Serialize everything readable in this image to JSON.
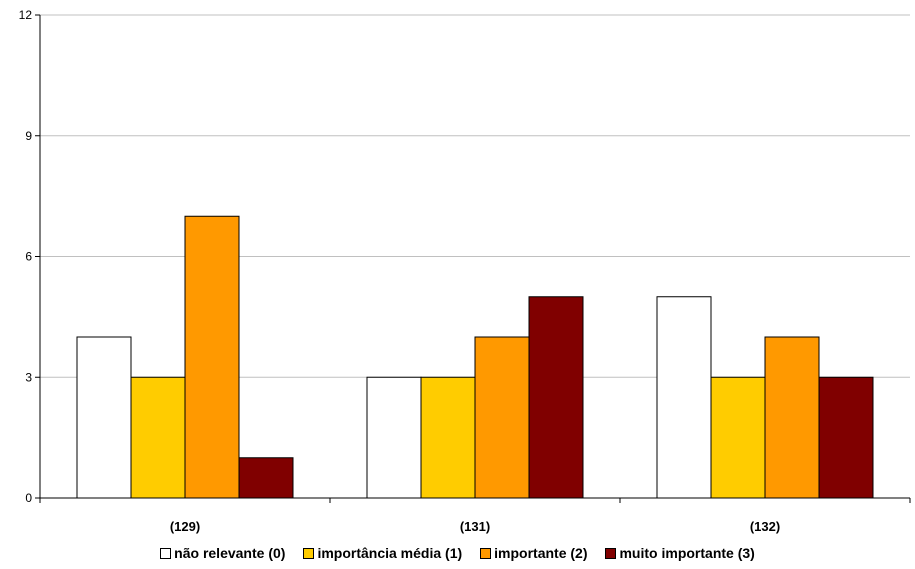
{
  "chart_data": {
    "type": "bar",
    "title": "",
    "xlabel": "",
    "ylabel": "",
    "categories": [
      "(129)",
      "(131)",
      "(132)"
    ],
    "series": [
      {
        "name": "não relevante (0)",
        "color": "#FFFFFF",
        "values": [
          4,
          3,
          5
        ]
      },
      {
        "name": "importância média (1)",
        "color": "#FFCC00",
        "values": [
          3,
          3,
          3
        ]
      },
      {
        "name": "importante (2)",
        "color": "#FF9900",
        "values": [
          7,
          4,
          4
        ]
      },
      {
        "name": "muito importante (3)",
        "color": "#800000",
        "values": [
          1,
          5,
          3
        ]
      }
    ],
    "ylim": [
      0,
      12
    ],
    "yticks": [
      0,
      3,
      6,
      9,
      12
    ],
    "grid": true,
    "legend_position": "bottom"
  }
}
